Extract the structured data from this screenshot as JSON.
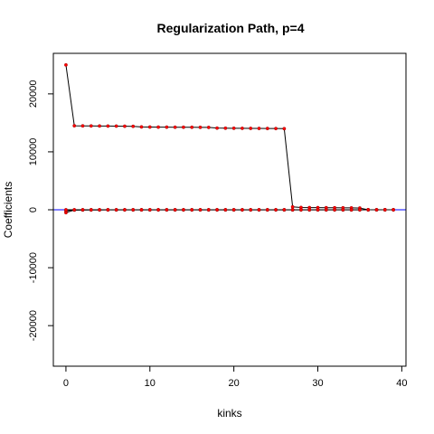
{
  "chart_data": {
    "type": "line",
    "title": "Regularization Path, p=4",
    "xlabel": "kinks",
    "ylabel": "Coefficients",
    "xlim": [
      -1.5,
      40.5
    ],
    "ylim": [
      -27000,
      27000
    ],
    "x_ticks": [
      0,
      10,
      20,
      30,
      40
    ],
    "y_ticks": [
      -20000,
      -10000,
      0,
      10000,
      20000
    ],
    "reference_line": {
      "y": 0,
      "color": "#0000ff"
    },
    "line_color": "#000000",
    "point_color": "#ff0000",
    "grid": false,
    "series": [
      {
        "values": [
          [
            0,
            25000
          ],
          [
            1,
            14500
          ],
          [
            2,
            14480
          ],
          [
            3,
            14470
          ],
          [
            4,
            14460
          ],
          [
            5,
            14450
          ],
          [
            6,
            14440
          ],
          [
            7,
            14420
          ],
          [
            8,
            14400
          ],
          [
            9,
            14300
          ],
          [
            10,
            14280
          ],
          [
            11,
            14270
          ],
          [
            12,
            14260
          ],
          [
            13,
            14250
          ],
          [
            14,
            14250
          ],
          [
            15,
            14240
          ],
          [
            16,
            14230
          ],
          [
            17,
            14220
          ],
          [
            18,
            14100
          ],
          [
            19,
            14080
          ],
          [
            20,
            14070
          ],
          [
            21,
            14060
          ],
          [
            22,
            14050
          ],
          [
            23,
            14040
          ],
          [
            24,
            14030
          ],
          [
            25,
            14020
          ],
          [
            26,
            14000
          ],
          [
            27,
            500
          ],
          [
            28,
            400
          ],
          [
            29,
            380
          ],
          [
            30,
            370
          ],
          [
            31,
            360
          ],
          [
            32,
            350
          ],
          [
            33,
            340
          ],
          [
            34,
            330
          ],
          [
            35,
            300
          ],
          [
            36,
            0
          ],
          [
            37,
            0
          ],
          [
            38,
            0
          ],
          [
            39,
            0
          ]
        ]
      },
      {
        "values": [
          [
            0,
            -500
          ],
          [
            1,
            -50
          ],
          [
            2,
            -40
          ],
          [
            3,
            -30
          ],
          [
            4,
            -30
          ],
          [
            5,
            -20
          ],
          [
            6,
            -20
          ],
          [
            7,
            -20
          ],
          [
            8,
            -20
          ],
          [
            9,
            -20
          ],
          [
            10,
            -20
          ],
          [
            11,
            -20
          ],
          [
            12,
            -20
          ],
          [
            13,
            -20
          ],
          [
            14,
            -20
          ],
          [
            15,
            -20
          ],
          [
            16,
            -20
          ],
          [
            17,
            -20
          ],
          [
            18,
            -20
          ],
          [
            19,
            -20
          ],
          [
            20,
            -20
          ],
          [
            21,
            -20
          ],
          [
            22,
            -20
          ],
          [
            23,
            -20
          ],
          [
            24,
            -20
          ],
          [
            25,
            -20
          ],
          [
            26,
            -20
          ],
          [
            27,
            -20
          ],
          [
            28,
            -20
          ],
          [
            29,
            -20
          ],
          [
            30,
            -20
          ],
          [
            31,
            -20
          ],
          [
            32,
            -20
          ],
          [
            33,
            -20
          ],
          [
            34,
            -20
          ],
          [
            35,
            -20
          ],
          [
            36,
            -10
          ],
          [
            37,
            -10
          ],
          [
            38,
            -5
          ],
          [
            39,
            0
          ]
        ]
      },
      {
        "values": [
          [
            0,
            -200
          ],
          [
            1,
            -30
          ],
          [
            2,
            -20
          ],
          [
            3,
            -10
          ],
          [
            4,
            -10
          ],
          [
            5,
            -10
          ],
          [
            6,
            -10
          ],
          [
            7,
            -10
          ],
          [
            8,
            -10
          ],
          [
            9,
            -10
          ],
          [
            10,
            -10
          ],
          [
            11,
            -10
          ],
          [
            12,
            -10
          ],
          [
            13,
            -10
          ],
          [
            14,
            -10
          ],
          [
            15,
            -10
          ],
          [
            16,
            -10
          ],
          [
            17,
            -10
          ],
          [
            18,
            -10
          ],
          [
            19,
            -10
          ],
          [
            20,
            -10
          ],
          [
            21,
            -10
          ],
          [
            22,
            -10
          ],
          [
            23,
            -10
          ],
          [
            24,
            -10
          ],
          [
            25,
            -10
          ],
          [
            26,
            -10
          ],
          [
            27,
            -10
          ],
          [
            28,
            -10
          ],
          [
            29,
            -10
          ],
          [
            30,
            -10
          ],
          [
            31,
            -10
          ],
          [
            32,
            -10
          ],
          [
            33,
            -10
          ],
          [
            34,
            -10
          ],
          [
            35,
            -10
          ],
          [
            36,
            -5
          ],
          [
            37,
            -5
          ],
          [
            38,
            0
          ],
          [
            39,
            0
          ]
        ]
      },
      {
        "values": [
          [
            0,
            0
          ],
          [
            1,
            0
          ],
          [
            2,
            0
          ],
          [
            3,
            0
          ],
          [
            4,
            0
          ],
          [
            5,
            0
          ],
          [
            6,
            0
          ],
          [
            7,
            0
          ],
          [
            8,
            0
          ],
          [
            9,
            0
          ],
          [
            10,
            0
          ],
          [
            11,
            0
          ],
          [
            12,
            0
          ],
          [
            13,
            0
          ],
          [
            14,
            0
          ],
          [
            15,
            0
          ],
          [
            16,
            0
          ],
          [
            17,
            0
          ],
          [
            18,
            0
          ],
          [
            19,
            0
          ],
          [
            20,
            0
          ],
          [
            21,
            0
          ],
          [
            22,
            0
          ],
          [
            23,
            0
          ],
          [
            24,
            0
          ],
          [
            25,
            0
          ],
          [
            26,
            0
          ],
          [
            27,
            0
          ],
          [
            28,
            0
          ],
          [
            29,
            0
          ],
          [
            30,
            0
          ],
          [
            31,
            0
          ],
          [
            32,
            0
          ],
          [
            33,
            0
          ],
          [
            34,
            0
          ],
          [
            35,
            0
          ],
          [
            36,
            0
          ],
          [
            37,
            0
          ],
          [
            38,
            0
          ],
          [
            39,
            0
          ]
        ]
      }
    ]
  }
}
